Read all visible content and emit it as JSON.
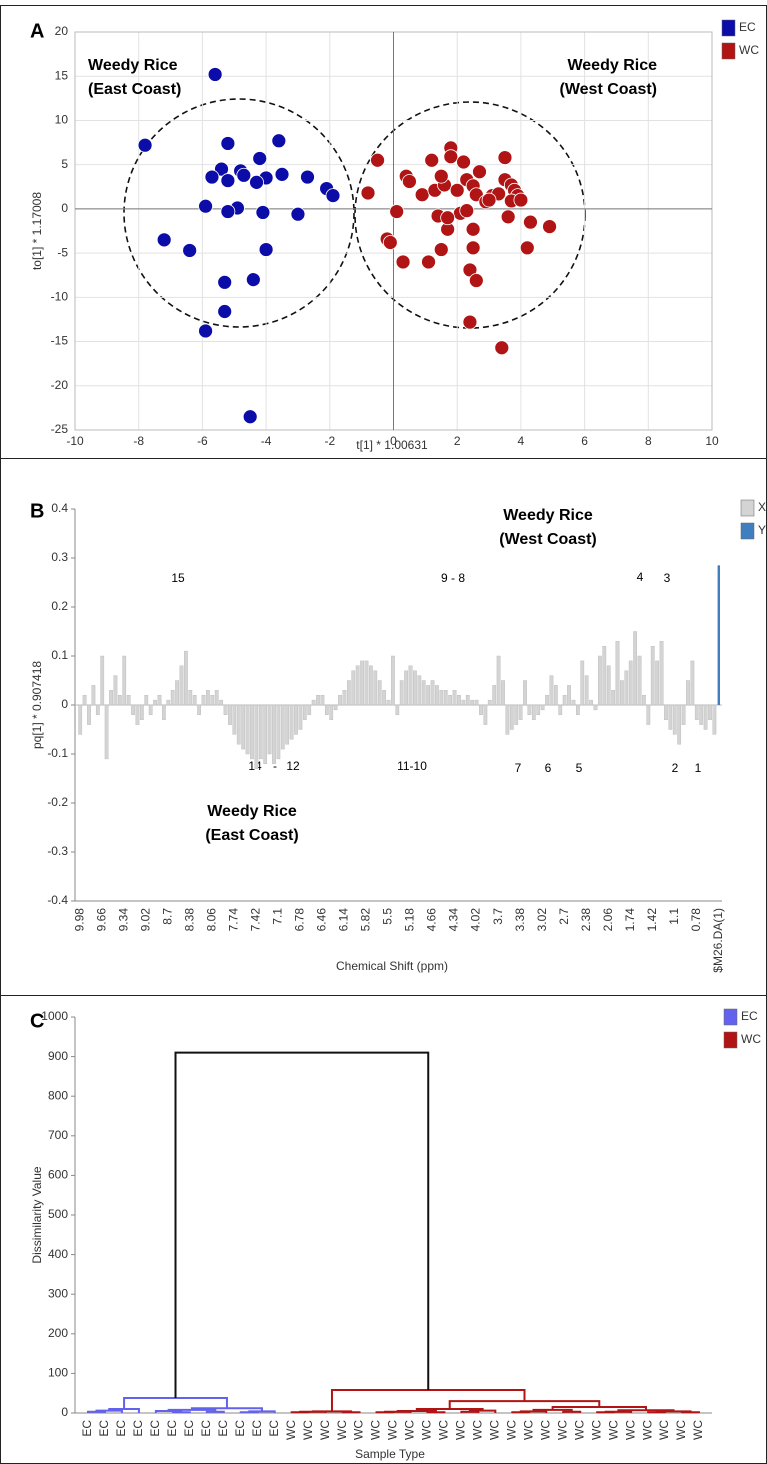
{
  "chart_data": [
    {
      "type": "scatter",
      "panel_label": "A",
      "xlabel": "t[1] * 1.00631",
      "ylabel": "to[1] * 1.17008",
      "xlim": [
        -10,
        10
      ],
      "xticks": [
        -10,
        -8,
        -6,
        -4,
        -2,
        0,
        2,
        4,
        6,
        8,
        10
      ],
      "ylim": [
        -25,
        20
      ],
      "yticks": [
        -25,
        -20,
        -15,
        -10,
        -5,
        0,
        5,
        10,
        15,
        20
      ],
      "grid": true,
      "region_labels": [
        "Weedy Rice",
        "(East Coast)",
        "Weedy Rice",
        "(West Coast)"
      ],
      "series": [
        {
          "name": "EC",
          "color": "#0c0ca8",
          "x": [
            -5.6,
            -7.8,
            -5.2,
            -3.6,
            -4.2,
            -5.4,
            -4.8,
            -5.7,
            -4.7,
            -5.2,
            -3.5,
            -4.0,
            -4.3,
            -2.7,
            -2.1,
            -1.9,
            -5.9,
            -4.9,
            -5.2,
            -4.1,
            -3.0,
            -7.2,
            -6.4,
            -4.0,
            -5.3,
            -4.4,
            -5.3,
            -5.9,
            -4.5
          ],
          "values": [
            15.2,
            7.2,
            7.4,
            7.7,
            5.7,
            4.5,
            4.3,
            3.6,
            3.8,
            3.2,
            3.9,
            3.5,
            3.0,
            3.6,
            2.3,
            1.5,
            0.3,
            0.1,
            -0.3,
            -0.4,
            -0.6,
            -3.5,
            -4.7,
            -4.6,
            -8.3,
            -8.0,
            -11.6,
            -13.8,
            -23.5
          ]
        },
        {
          "name": "WC",
          "color": "#b01414",
          "x": [
            -0.5,
            -0.8,
            -0.2,
            -0.1,
            0.1,
            0.3,
            0.4,
            0.5,
            0.9,
            1.1,
            1.2,
            1.3,
            1.5,
            1.6,
            1.8,
            1.8,
            1.4,
            1.5,
            1.7,
            2.0,
            2.2,
            2.3,
            2.5,
            2.6,
            2.7,
            2.1,
            2.3,
            2.5,
            2.5,
            2.4,
            2.6,
            2.4,
            2.9,
            3.1,
            3.3,
            3.5,
            3.5,
            3.6,
            3.7,
            3.8,
            3.9,
            3.7,
            4.0,
            4.3,
            4.2,
            4.9,
            3.4,
            1.7,
            3.0
          ],
          "values": [
            5.5,
            1.8,
            -3.4,
            -3.8,
            -0.3,
            -6.0,
            3.7,
            3.1,
            1.6,
            -6.0,
            5.5,
            2.1,
            -4.6,
            2.7,
            6.9,
            5.9,
            -0.8,
            3.7,
            -2.3,
            2.1,
            5.3,
            3.3,
            2.6,
            1.6,
            4.2,
            -0.5,
            -0.2,
            -2.3,
            -4.4,
            -6.9,
            -8.1,
            -12.8,
            0.8,
            1.5,
            1.7,
            5.8,
            3.3,
            -0.9,
            2.7,
            2.1,
            1.5,
            0.9,
            1.0,
            -1.5,
            -4.4,
            -2.0,
            -15.7,
            -1.0,
            1.0
          ]
        }
      ]
    },
    {
      "type": "bar",
      "panel_label": "B",
      "xlabel": "Chemical Shift (ppm)",
      "ylabel": "pq[1] * 0.907418",
      "ylim": [
        -0.4,
        0.4
      ],
      "yticks": [
        -0.4,
        -0.3,
        -0.2,
        -0.1,
        0,
        0.1,
        0.2,
        0.3,
        0.4
      ],
      "region_labels": [
        "Weedy Rice",
        "(West Coast)",
        "Weedy Rice",
        "(East Coast)"
      ],
      "annotations": [
        "15",
        "9 - 8",
        "4",
        "3",
        "14",
        "-",
        "12",
        "11-10",
        "7",
        "6",
        "5",
        "2",
        "1"
      ],
      "categories": [
        "9.98",
        null,
        null,
        null,
        null,
        "9.66",
        null,
        null,
        null,
        null,
        "9.34",
        null,
        null,
        null,
        null,
        "9.02",
        null,
        null,
        null,
        null,
        "8.7",
        null,
        null,
        null,
        null,
        "8.38",
        null,
        null,
        null,
        null,
        "8.06",
        null,
        null,
        null,
        null,
        "7.74",
        null,
        null,
        null,
        null,
        "7.42",
        null,
        null,
        null,
        null,
        "7.1",
        null,
        null,
        null,
        null,
        "6.78",
        null,
        null,
        null,
        null,
        "6.46",
        null,
        null,
        null,
        null,
        "6.14",
        null,
        null,
        null,
        null,
        "5.82",
        null,
        null,
        null,
        null,
        "5.5",
        null,
        null,
        null,
        null,
        "5.18",
        null,
        null,
        null,
        null,
        "4.66",
        null,
        null,
        null,
        null,
        "4.34",
        null,
        null,
        null,
        null,
        "4.02",
        null,
        null,
        null,
        null,
        "3.7",
        null,
        null,
        null,
        null,
        "3.38",
        null,
        null,
        null,
        null,
        "3.02",
        null,
        null,
        null,
        null,
        "2.7",
        null,
        null,
        null,
        null,
        "2.38",
        null,
        null,
        null,
        null,
        "2.06",
        null,
        null,
        null,
        null,
        "1.74",
        null,
        null,
        null,
        null,
        "1.42",
        null,
        null,
        null,
        null,
        "1.1",
        null,
        null,
        null,
        null,
        "0.78",
        null,
        null,
        null,
        null,
        "$M26.DA(1)"
      ],
      "series": [
        {
          "name": "X",
          "color": "#d4d4d4",
          "values": [
            -0.06,
            0.02,
            -0.04,
            0.04,
            -0.02,
            0.1,
            -0.11,
            0.03,
            0.06,
            0.02,
            0.1,
            0.02,
            -0.02,
            -0.04,
            -0.03,
            0.02,
            -0.02,
            0.01,
            0.02,
            -0.03,
            0.01,
            0.03,
            0.05,
            0.08,
            0.11,
            0.03,
            0.02,
            -0.02,
            0.02,
            0.03,
            0.02,
            0.03,
            0.01,
            -0.02,
            -0.04,
            -0.06,
            -0.08,
            -0.09,
            -0.1,
            -0.11,
            -0.13,
            -0.11,
            -0.12,
            -0.1,
            -0.12,
            -0.11,
            -0.09,
            -0.08,
            -0.07,
            -0.06,
            -0.05,
            -0.03,
            -0.02,
            0.01,
            0.02,
            0.02,
            -0.02,
            -0.03,
            -0.01,
            0.02,
            0.03,
            0.05,
            0.07,
            0.08,
            0.09,
            0.09,
            0.08,
            0.07,
            0.05,
            0.03,
            0.01,
            0.1,
            -0.02,
            0.05,
            0.07,
            0.08,
            0.07,
            0.06,
            0.05,
            0.04,
            0.05,
            0.04,
            0.03,
            0.03,
            0.02,
            0.03,
            0.02,
            0.01,
            0.02,
            0.01,
            0.01,
            -0.02,
            -0.04,
            0.01,
            0.04,
            0.1,
            0.05,
            -0.06,
            -0.05,
            -0.04,
            -0.03,
            0.05,
            -0.02,
            -0.03,
            -0.02,
            -0.01,
            0.02,
            0.06,
            0.04,
            -0.02,
            0.02,
            0.04,
            0.01,
            -0.02,
            0.09,
            0.06,
            0.01,
            -0.01,
            0.1,
            0.12,
            0.08,
            0.03,
            0.13,
            0.05,
            0.07,
            0.09,
            0.15,
            0.1,
            0.02,
            -0.04,
            0.12,
            0.09,
            0.13,
            -0.03,
            -0.05,
            -0.06,
            -0.08,
            -0.04,
            0.05,
            0.09,
            -0.03,
            -0.04,
            -0.05,
            -0.03,
            -0.06,
            null
          ]
        },
        {
          "name": "Y",
          "color": "#3f7fbf",
          "values": [
            null,
            null,
            null,
            null,
            null,
            null,
            null,
            null,
            null,
            null,
            null,
            null,
            null,
            null,
            null,
            null,
            null,
            null,
            null,
            null,
            null,
            null,
            null,
            null,
            null,
            null,
            null,
            null,
            null,
            null,
            null,
            null,
            null,
            null,
            null,
            null,
            null,
            null,
            null,
            null,
            null,
            null,
            null,
            null,
            null,
            null,
            null,
            null,
            null,
            null,
            null,
            null,
            null,
            null,
            null,
            null,
            null,
            null,
            null,
            null,
            null,
            null,
            null,
            null,
            null,
            null,
            null,
            null,
            null,
            null,
            null,
            null,
            null,
            null,
            null,
            null,
            null,
            null,
            null,
            null,
            null,
            null,
            null,
            null,
            null,
            null,
            null,
            null,
            null,
            null,
            null,
            null,
            null,
            null,
            null,
            null,
            null,
            null,
            null,
            null,
            null,
            null,
            null,
            null,
            null,
            null,
            null,
            null,
            null,
            null,
            null,
            null,
            null,
            null,
            null,
            null,
            null,
            null,
            null,
            null,
            null,
            null,
            null,
            null,
            null,
            null,
            null,
            null,
            null,
            null,
            null,
            null,
            null,
            null,
            null,
            null,
            null,
            null,
            null,
            null,
            null,
            null,
            null,
            null,
            null,
            0.285
          ]
        }
      ]
    },
    {
      "type": "dendrogram",
      "panel_label": "C",
      "xlabel": "Sample Type",
      "ylabel": "Dissimilarity Value",
      "ylim": [
        0,
        1000
      ],
      "yticks": [
        0,
        100,
        200,
        300,
        400,
        500,
        600,
        700,
        800,
        900,
        1000
      ],
      "categories": [
        "EC",
        "EC",
        "EC",
        "EC",
        "EC",
        "EC",
        "EC",
        "EC",
        "EC",
        "EC",
        "EC",
        "EC",
        "WC",
        "WC",
        "WC",
        "WC",
        "WC",
        "WC",
        "WC",
        "WC",
        "WC",
        "WC",
        "WC",
        "WC",
        "WC",
        "WC",
        "WC",
        "WC",
        "WC",
        "WC",
        "WC",
        "WC",
        "WC",
        "WC",
        "WC",
        "WC",
        "WC"
      ],
      "series": [
        {
          "name": "EC",
          "color": "#6262ee"
        },
        {
          "name": "WC",
          "color": "#b01414"
        }
      ],
      "link_color": "#111111",
      "merges": [
        [
          0,
          1,
          3
        ],
        [
          2,
          37,
          6
        ],
        [
          3,
          38,
          10
        ],
        [
          5,
          6,
          2
        ],
        [
          4,
          40,
          5
        ],
        [
          7,
          8,
          3
        ],
        [
          41,
          42,
          8
        ],
        [
          9,
          10,
          2
        ],
        [
          11,
          44,
          4
        ],
        [
          43,
          45,
          12
        ],
        [
          39,
          46,
          38
        ],
        [
          12,
          13,
          2
        ],
        [
          14,
          48,
          3
        ],
        [
          15,
          16,
          2
        ],
        [
          49,
          50,
          4
        ],
        [
          17,
          18,
          2
        ],
        [
          19,
          52,
          3
        ],
        [
          20,
          21,
          2
        ],
        [
          53,
          54,
          5
        ],
        [
          22,
          23,
          3
        ],
        [
          24,
          56,
          6
        ],
        [
          55,
          57,
          10
        ],
        [
          25,
          26,
          2
        ],
        [
          27,
          59,
          4
        ],
        [
          28,
          29,
          3
        ],
        [
          60,
          61,
          8
        ],
        [
          30,
          31,
          2
        ],
        [
          32,
          63,
          3
        ],
        [
          33,
          34,
          2
        ],
        [
          35,
          36,
          2
        ],
        [
          65,
          66,
          4
        ],
        [
          64,
          67,
          7
        ],
        [
          62,
          68,
          15
        ],
        [
          58,
          69,
          30
        ],
        [
          51,
          70,
          58
        ],
        [
          47,
          71,
          910
        ]
      ]
    }
  ]
}
